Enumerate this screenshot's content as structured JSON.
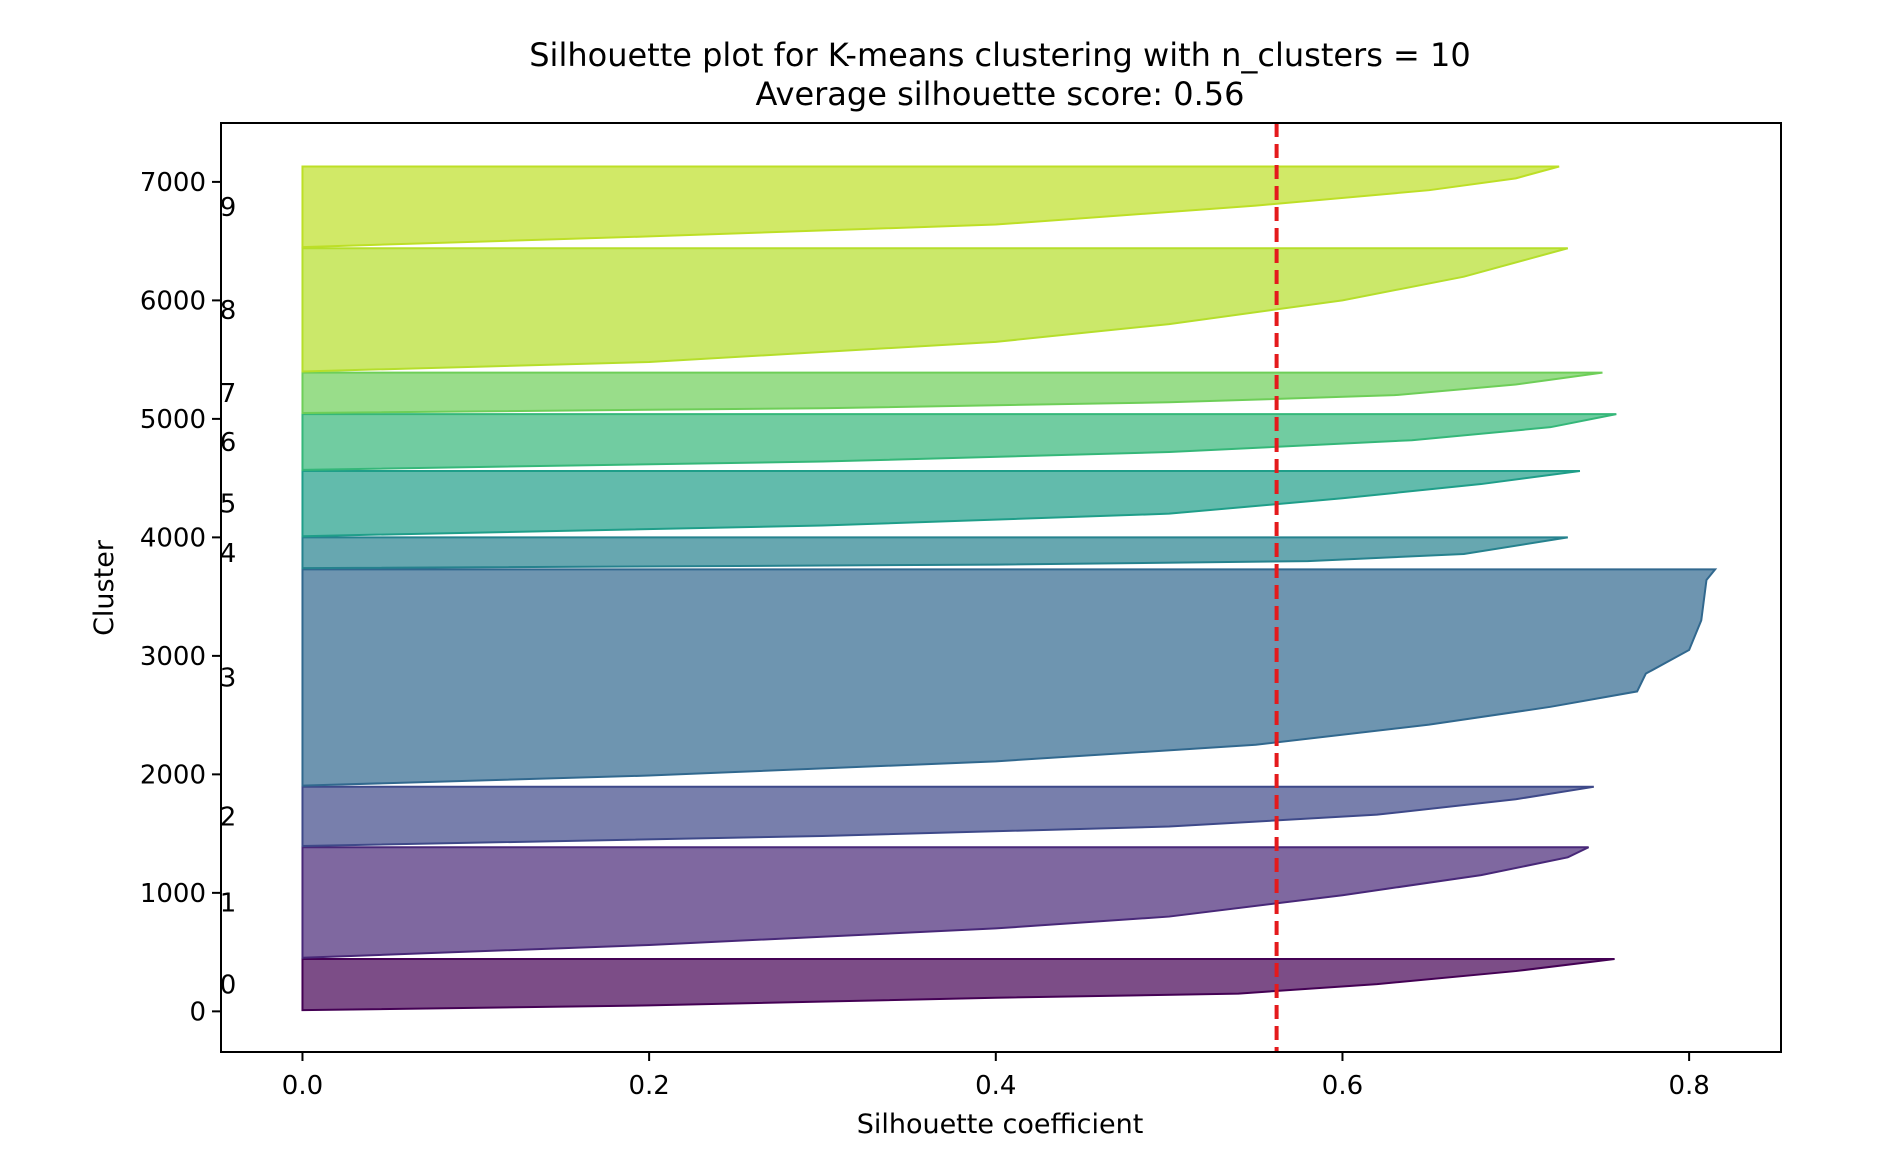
{
  "chart_data": {
    "type": "area",
    "title": "Silhouette plot for K-means clustering with n_clusters = 10",
    "subtitle": "Average silhouette score: 0.56",
    "xlabel": "Silhouette coefficient",
    "ylabel": "Cluster",
    "xlim": [
      -0.047,
      0.853
    ],
    "ylim": [
      -343,
      7497
    ],
    "x_ticks": [
      "0.0",
      "0.2",
      "0.4",
      "0.6",
      "0.8"
    ],
    "x_tick_values": [
      0.0,
      0.2,
      0.4,
      0.6,
      0.8
    ],
    "y_ticks": [
      "0",
      "1000",
      "2000",
      "3000",
      "4000",
      "5000",
      "6000",
      "7000"
    ],
    "y_tick_values": [
      0,
      1000,
      2000,
      3000,
      4000,
      5000,
      6000,
      7000
    ],
    "grid": false,
    "legend": "none",
    "average_line": {
      "x": 0.562,
      "color": "#e41a1c",
      "style": "dashed"
    },
    "clusters": [
      {
        "label": "0",
        "y_start": 10,
        "y_end": 442,
        "color": "#440154",
        "points": [
          [
            0.0,
            10
          ],
          [
            0.2,
            50
          ],
          [
            0.4,
            115
          ],
          [
            0.54,
            150
          ],
          [
            0.62,
            230
          ],
          [
            0.7,
            340
          ],
          [
            0.757,
            442
          ]
        ]
      },
      {
        "label": "1",
        "y_start": 452,
        "y_end": 1385,
        "color": "#482878",
        "points": [
          [
            0.0,
            452
          ],
          [
            0.2,
            560
          ],
          [
            0.4,
            700
          ],
          [
            0.5,
            800
          ],
          [
            0.6,
            980
          ],
          [
            0.68,
            1150
          ],
          [
            0.73,
            1300
          ],
          [
            0.742,
            1385
          ]
        ]
      },
      {
        "label": "2",
        "y_start": 1395,
        "y_end": 1895,
        "color": "#3e4989",
        "points": [
          [
            0.0,
            1395
          ],
          [
            0.3,
            1480
          ],
          [
            0.5,
            1560
          ],
          [
            0.62,
            1660
          ],
          [
            0.7,
            1790
          ],
          [
            0.745,
            1895
          ]
        ]
      },
      {
        "label": "3",
        "y_start": 1905,
        "y_end": 3730,
        "color": "#31688e",
        "points": [
          [
            0.0,
            1905
          ],
          [
            0.2,
            1990
          ],
          [
            0.4,
            2110
          ],
          [
            0.55,
            2250
          ],
          [
            0.65,
            2420
          ],
          [
            0.72,
            2570
          ],
          [
            0.77,
            2700
          ],
          [
            0.775,
            2850
          ],
          [
            0.8,
            3050
          ],
          [
            0.807,
            3300
          ],
          [
            0.81,
            3640
          ],
          [
            0.815,
            3730
          ]
        ]
      },
      {
        "label": "4",
        "y_start": 3740,
        "y_end": 4000,
        "color": "#26828e",
        "points": [
          [
            0.0,
            3740
          ],
          [
            0.4,
            3770
          ],
          [
            0.58,
            3800
          ],
          [
            0.67,
            3860
          ],
          [
            0.73,
            4000
          ]
        ]
      },
      {
        "label": "5",
        "y_start": 4010,
        "y_end": 4560,
        "color": "#1f9e89",
        "points": [
          [
            0.0,
            4010
          ],
          [
            0.3,
            4100
          ],
          [
            0.5,
            4200
          ],
          [
            0.6,
            4330
          ],
          [
            0.68,
            4450
          ],
          [
            0.737,
            4560
          ]
        ]
      },
      {
        "label": "6",
        "y_start": 4570,
        "y_end": 5040,
        "color": "#35b779",
        "points": [
          [
            0.0,
            4570
          ],
          [
            0.3,
            4640
          ],
          [
            0.5,
            4720
          ],
          [
            0.64,
            4820
          ],
          [
            0.72,
            4930
          ],
          [
            0.758,
            5040
          ]
        ]
      },
      {
        "label": "7",
        "y_start": 5050,
        "y_end": 5390,
        "color": "#6ece58",
        "points": [
          [
            0.0,
            5050
          ],
          [
            0.3,
            5090
          ],
          [
            0.5,
            5140
          ],
          [
            0.63,
            5200
          ],
          [
            0.7,
            5290
          ],
          [
            0.75,
            5390
          ]
        ]
      },
      {
        "label": "8",
        "y_start": 5400,
        "y_end": 6440,
        "color": "#b5de2b",
        "points": [
          [
            0.0,
            5400
          ],
          [
            0.2,
            5480
          ],
          [
            0.4,
            5650
          ],
          [
            0.5,
            5800
          ],
          [
            0.6,
            6000
          ],
          [
            0.67,
            6200
          ],
          [
            0.73,
            6440
          ]
        ]
      },
      {
        "label": "9",
        "y_start": 6450,
        "y_end": 7130,
        "color": "#bddf26",
        "points": [
          [
            0.0,
            6450
          ],
          [
            0.2,
            6540
          ],
          [
            0.4,
            6640
          ],
          [
            0.55,
            6800
          ],
          [
            0.65,
            6930
          ],
          [
            0.7,
            7030
          ],
          [
            0.725,
            7130
          ]
        ]
      }
    ]
  }
}
